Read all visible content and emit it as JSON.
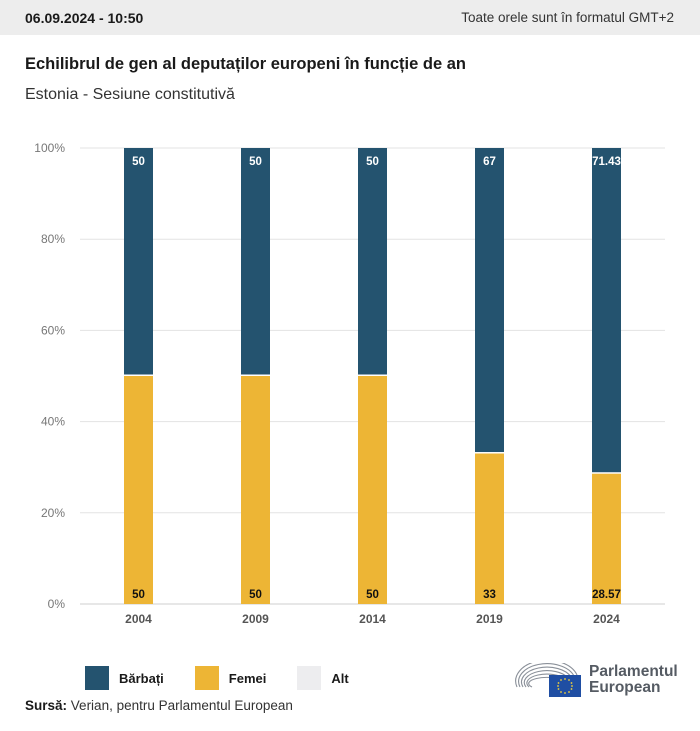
{
  "header": {
    "datetime": "06.09.2024 - 10:50",
    "timezone_note": "Toate orele sunt în formatul GMT+2"
  },
  "title": "Echilibrul de gen al deputaților europeni în funcție de an",
  "subtitle": "Estonia - Sesiune constitutivă",
  "colors": {
    "men": "#24536f",
    "women": "#edb535",
    "other": "#ededef",
    "grid": "#e3e3e3"
  },
  "chart_data": {
    "type": "bar",
    "stacked": true,
    "title": "Echilibrul de gen al deputaților europeni în funcție de an",
    "subtitle": "Estonia - Sesiune constitutivă",
    "categories": [
      "2004",
      "2009",
      "2014",
      "2019",
      "2024"
    ],
    "series": [
      {
        "name": "Bărbați",
        "values": [
          50,
          50,
          50,
          67,
          71.43
        ],
        "labels": [
          "50",
          "50",
          "50",
          "67",
          "71.43"
        ]
      },
      {
        "name": "Femei",
        "values": [
          50,
          50,
          50,
          33,
          28.57
        ],
        "labels": [
          "50",
          "50",
          "50",
          "33",
          "28.57"
        ]
      },
      {
        "name": "Alt",
        "values": [
          0,
          0,
          0,
          0,
          0
        ]
      }
    ],
    "xlabel": "",
    "ylabel": "",
    "ylim": [
      0,
      100
    ],
    "yticks": [
      "0%",
      "20%",
      "40%",
      "60%",
      "80%",
      "100%"
    ],
    "ytick_values": [
      0,
      20,
      40,
      60,
      80,
      100
    ],
    "grid": true,
    "legend_position": "bottom-left"
  },
  "legend": [
    {
      "label": "Bărbați",
      "color": "#24536f"
    },
    {
      "label": "Femei",
      "color": "#edb535"
    },
    {
      "label": "Alt",
      "color": "#ededef"
    }
  ],
  "source": {
    "label": "Sursă:",
    "text": "Verian, pentru Parlamentul European"
  },
  "logo": {
    "line1": "Parlamentul",
    "line2": "European"
  }
}
